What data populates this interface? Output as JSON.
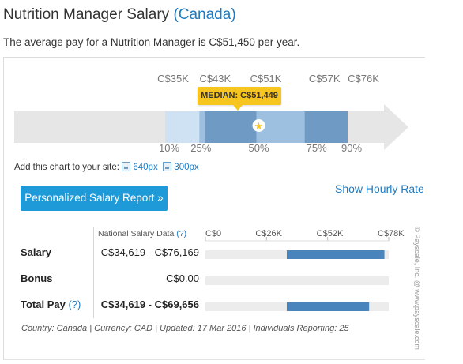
{
  "page": {
    "title_main": "Nutrition Manager Salary",
    "title_country": "(Canada)",
    "summary": "The average pay for a Nutrition Manager is C$51,450 per year."
  },
  "chart_data": [
    {
      "type": "bar",
      "description_kind": "percentile-range",
      "percentiles": [
        {
          "label": "10%",
          "pct": 10,
          "value": 35000,
          "value_label": "C$35K"
        },
        {
          "label": "25%",
          "pct": 25,
          "value": 43000,
          "value_label": "C$43K"
        },
        {
          "label": "50%",
          "pct": 50,
          "value": 51000,
          "value_label": "C$51K"
        },
        {
          "label": "75%",
          "pct": 75,
          "value": 57000,
          "value_label": "C$57K"
        },
        {
          "label": "90%",
          "pct": 90,
          "value": 76000,
          "value_label": "C$76K"
        }
      ],
      "median_label": "MEDIAN: C$51,449",
      "median_value": 51449,
      "colors": {
        "track": "#e6e6e6",
        "outer": "#cfe2f3",
        "mid": "#9dc0e0",
        "inner": "#6f9ac4",
        "median": "#f7c51f"
      }
    },
    {
      "type": "bar",
      "axis_ticks": [
        "C$0",
        "C$26K",
        "C$52K",
        "C$78K"
      ],
      "xlim": [
        0,
        78000
      ],
      "series": [
        {
          "name": "Salary",
          "range": [
            34619,
            76169
          ],
          "label": "C$34,619 - C$76,169"
        },
        {
          "name": "Bonus",
          "range": [
            0,
            0
          ],
          "label": "C$0.00"
        },
        {
          "name": "Total Pay",
          "range": [
            34619,
            69656
          ],
          "label": "C$34,619 - C$69,656"
        }
      ]
    }
  ],
  "embed": {
    "label": "Add this chart to your site:",
    "size1": "640px",
    "size2": "300px"
  },
  "buttons": {
    "report": "Personalized Salary Report »",
    "hourly": "Show Hourly Rate"
  },
  "table": {
    "header": "National Salary Data",
    "header_q": "(?)",
    "rows": [
      {
        "label": "Salary",
        "q": "",
        "value": "C$34,619 - C$76,169"
      },
      {
        "label": "Bonus",
        "q": "",
        "value": "C$0.00"
      },
      {
        "label": "Total Pay",
        "q": "(?)",
        "value": "C$34,619 - C$69,656"
      }
    ]
  },
  "footer": "Country: Canada | Currency: CAD | Updated: 17 Mar 2016 | Individuals Reporting: 25",
  "copyright": "© Payscale, Inc. @ www.payscale.com"
}
